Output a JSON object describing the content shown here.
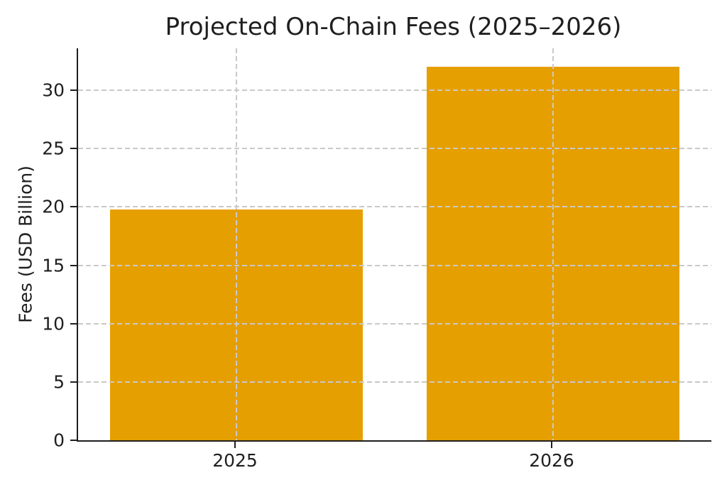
{
  "chart_data": {
    "type": "bar",
    "title": "Projected On-Chain Fees (2025–2026)",
    "ylabel": "Fees (USD Billion)",
    "xlabel": "",
    "categories": [
      "2025",
      "2026"
    ],
    "values": [
      19.8,
      32
    ],
    "yticks": [
      0,
      5,
      10,
      15,
      20,
      25,
      30
    ],
    "ylim": [
      0,
      33.6
    ],
    "bar_width_fraction": 0.8,
    "bar_color": "#E69F00",
    "axis_color": "#1f1f1f",
    "text_color": "#1f1f1f",
    "grid": {
      "visible": true,
      "axis": "both",
      "style": "dashed",
      "color": "#c9c9c9",
      "above_bars": true
    },
    "legend": null,
    "background": "#ffffff"
  }
}
